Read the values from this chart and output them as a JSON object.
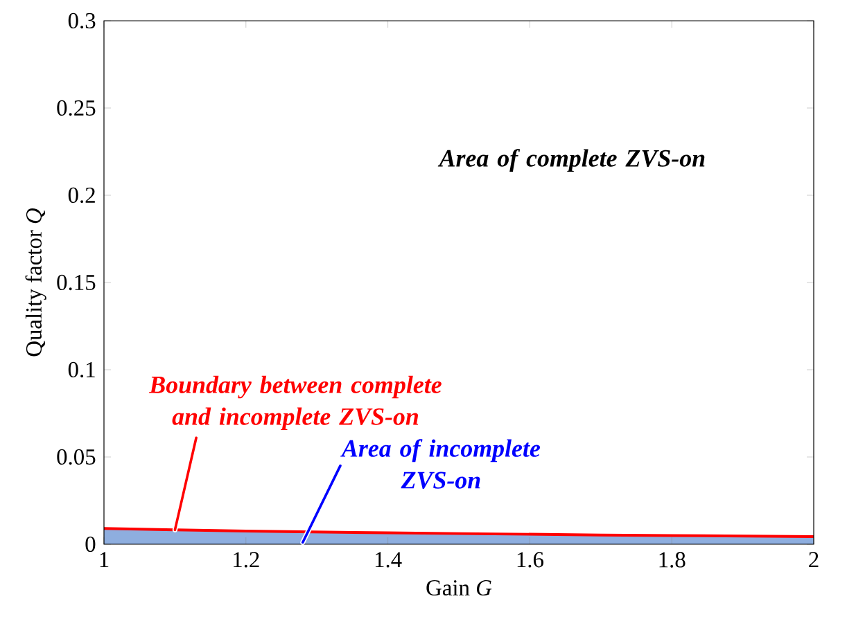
{
  "chart_data": {
    "type": "area",
    "xlabel": "Gain *G*",
    "ylabel": "Quality factor *Q*",
    "x": [
      1,
      1.1,
      1.2,
      1.3,
      1.4,
      1.5,
      1.6,
      1.7,
      1.8,
      1.9,
      2
    ],
    "series": [
      {
        "color": "#8eaedf",
        "values": [
          0.009,
          0.0082,
          0.0075,
          0.007,
          0.0065,
          0.0061,
          0.0057,
          0.0053,
          0.005,
          0.0047,
          0.0044
        ]
      },
      {
        "type": "line",
        "color": "#ff0000",
        "values": [
          0.009,
          0.0082,
          0.0075,
          0.007,
          0.0065,
          0.0061,
          0.0057,
          0.0053,
          0.005,
          0.0047,
          0.0044
        ]
      }
    ],
    "xlim": [
      1,
      2
    ],
    "ylim": [
      0,
      0.3
    ],
    "xticks": [
      1,
      1.2,
      1.4,
      1.6,
      1.8,
      2
    ],
    "yticks": [
      0,
      0.05,
      0.1,
      0.15,
      0.2,
      0.25,
      0.3
    ],
    "marker": "none",
    "line_style": "solid",
    "annotations": [
      "Area of complete ZVS-on",
      {
        "text": "Boundary between complete and incomplete ZVS-on",
        "x": 1.1,
        "y": 0.0082
      },
      {
        "text": "Area of incomplete ZVS-on",
        "x": 1.28,
        "y": 0.001
      }
    ]
  }
}
